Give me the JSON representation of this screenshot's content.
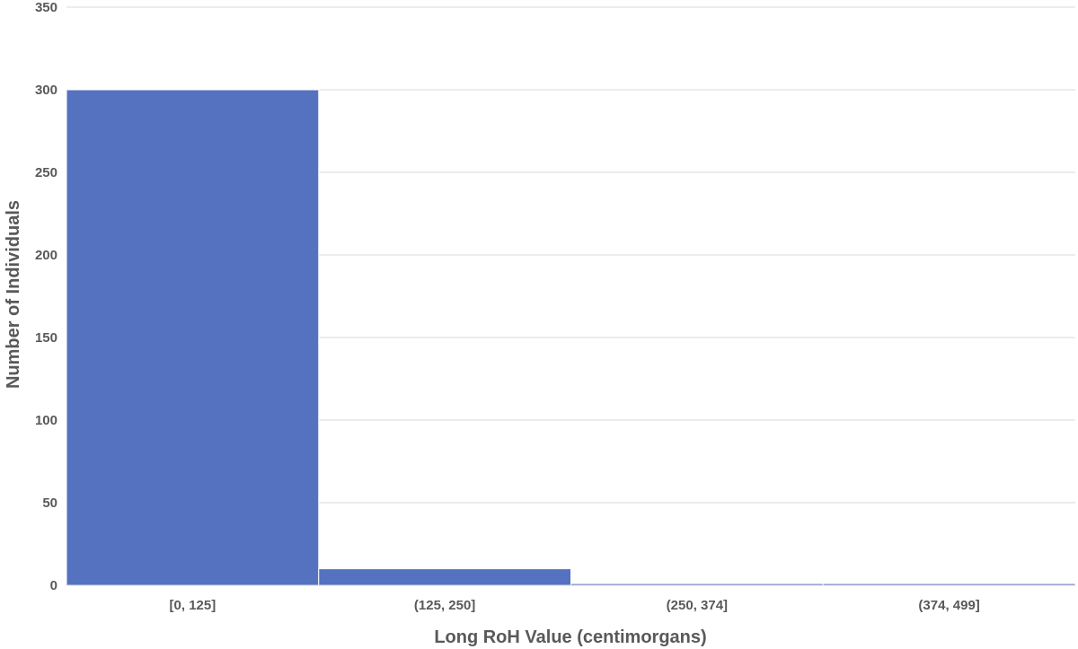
{
  "chart_data": {
    "type": "bar",
    "categories": [
      "[0, 125]",
      "(125, 250]",
      "(250, 374]",
      "(374, 499]"
    ],
    "values": [
      300,
      10,
      1,
      1
    ],
    "xlabel": "Long RoH Value (centimorgans)",
    "ylabel": "Number of Individuals",
    "ylim": [
      0,
      350
    ],
    "yticks": [
      0,
      50,
      100,
      150,
      200,
      250,
      300,
      350
    ],
    "grid": true,
    "legend": "none",
    "colors": {
      "bar": "#5472c0",
      "grid": "#d9d9d9",
      "text": "#595959"
    }
  }
}
